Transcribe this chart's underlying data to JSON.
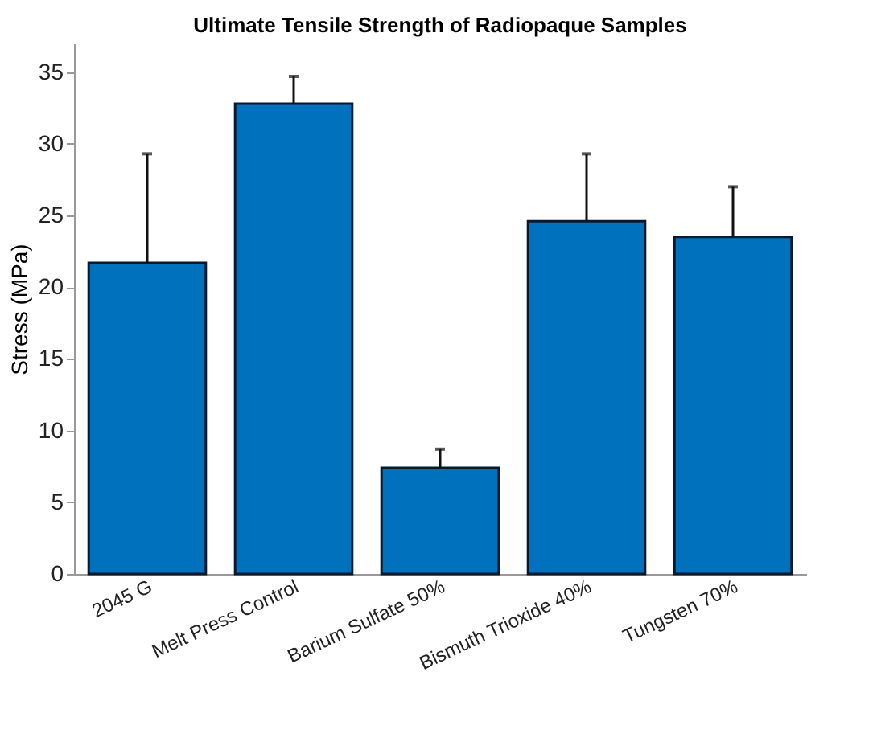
{
  "chart_data": {
    "type": "bar",
    "title": "Ultimate Tensile Strength of Radiopaque Samples",
    "ylabel": "Stress (MPa)",
    "categories": [
      "2045 G",
      "Melt Press Control",
      "Barium Sulfate 50%",
      "Bismuth Trioxide  40%",
      "Tungsten 70%"
    ],
    "values": [
      21.7,
      32.8,
      7.4,
      24.6,
      23.5
    ],
    "errors": [
      [
        21.7,
        29.3
      ],
      [
        32.8,
        34.7
      ],
      [
        7.4,
        8.7
      ],
      [
        24.6,
        29.3
      ],
      [
        23.5,
        27.0
      ]
    ],
    "color": "#0072bd",
    "ylim": [
      0,
      37
    ],
    "yticks": [
      0,
      5,
      10,
      15,
      20,
      25,
      30,
      35
    ],
    "grid": false
  }
}
